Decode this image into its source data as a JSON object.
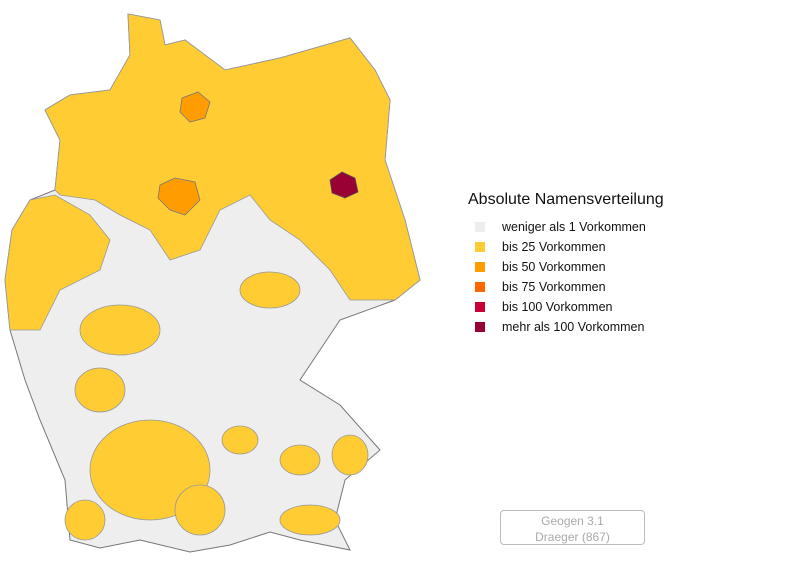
{
  "legend": {
    "title": "Absolute Namensverteilung",
    "items": [
      {
        "label": "weniger als 1 Vorkommen",
        "color": "#eeeeee"
      },
      {
        "label": "bis 25 Vorkommen",
        "color": "#ffcc33"
      },
      {
        "label": "bis 50 Vorkommen",
        "color": "#ff9d00"
      },
      {
        "label": "bis 75 Vorkommen",
        "color": "#ff6600"
      },
      {
        "label": "bis 100 Vorkommen",
        "color": "#cc0033"
      },
      {
        "label": "mehr als 100 Vorkommen",
        "color": "#990033"
      }
    ]
  },
  "credit": {
    "line1": "Geogen 3.1",
    "line2": "Draeger (867)"
  }
}
